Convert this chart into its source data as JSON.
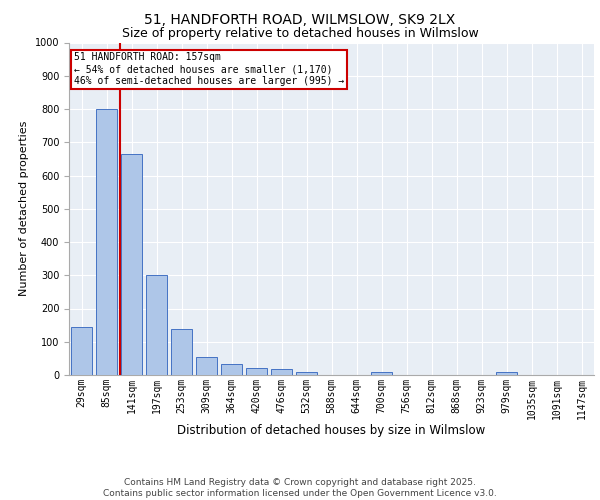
{
  "title_line1": "51, HANDFORTH ROAD, WILMSLOW, SK9 2LX",
  "title_line2": "Size of property relative to detached houses in Wilmslow",
  "xlabel": "Distribution of detached houses by size in Wilmslow",
  "ylabel": "Number of detached properties",
  "bar_labels": [
    "29sqm",
    "85sqm",
    "141sqm",
    "197sqm",
    "253sqm",
    "309sqm",
    "364sqm",
    "420sqm",
    "476sqm",
    "532sqm",
    "588sqm",
    "644sqm",
    "700sqm",
    "756sqm",
    "812sqm",
    "868sqm",
    "923sqm",
    "979sqm",
    "1035sqm",
    "1091sqm",
    "1147sqm"
  ],
  "bar_values": [
    145,
    800,
    665,
    300,
    137,
    55,
    32,
    20,
    18,
    10,
    0,
    0,
    10,
    0,
    0,
    0,
    0,
    10,
    0,
    0,
    0
  ],
  "bar_color": "#aec6e8",
  "bar_edge_color": "#4472c4",
  "vline_x": 1.55,
  "annotation_line1": "51 HANDFORTH ROAD: 157sqm",
  "annotation_line2": "← 54% of detached houses are smaller (1,170)",
  "annotation_line3": "46% of semi-detached houses are larger (995) →",
  "annotation_box_color": "#ffffff",
  "annotation_box_edgecolor": "#cc0000",
  "vline_color": "#cc0000",
  "ylim": [
    0,
    1000
  ],
  "yticks": [
    0,
    100,
    200,
    300,
    400,
    500,
    600,
    700,
    800,
    900,
    1000
  ],
  "bg_color": "#e8eef5",
  "grid_color": "#ffffff",
  "footer_line1": "Contains HM Land Registry data © Crown copyright and database right 2025.",
  "footer_line2": "Contains public sector information licensed under the Open Government Licence v3.0.",
  "title_fontsize": 10,
  "subtitle_fontsize": 9,
  "footer_fontsize": 6.5,
  "ylabel_fontsize": 8,
  "xlabel_fontsize": 8.5,
  "tick_fontsize": 7,
  "annotation_fontsize": 7
}
